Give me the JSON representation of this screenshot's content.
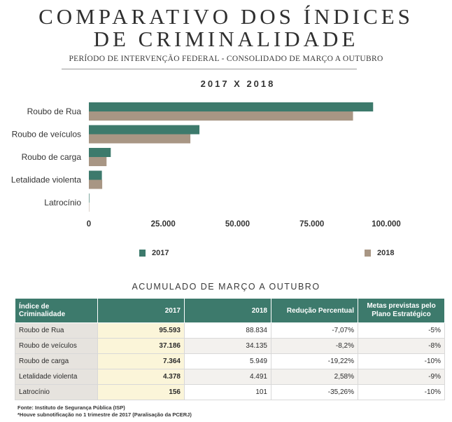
{
  "header": {
    "title_line1": "COMPARATIVO DOS ÍNDICES",
    "title_line2": "DE CRIMINALIDADE",
    "subtitle": "PERÍODO DE INTERVENÇÃO FEDERAL - CONSOLIDADO DE MARÇO A OUTUBRO"
  },
  "chart_data": {
    "type": "bar",
    "orientation": "horizontal",
    "title": "2017 X 2018",
    "categories": [
      "Roubo de Rua",
      "Roubo de veículos",
      "Roubo de carga",
      "Letalidade violenta",
      "Latrocínio"
    ],
    "series": [
      {
        "name": "2017",
        "color": "#3d7a6c",
        "values": [
          95593,
          37186,
          7364,
          4378,
          156
        ]
      },
      {
        "name": "2018",
        "color": "#a89684",
        "values": [
          88834,
          34135,
          5949,
          4491,
          101
        ]
      }
    ],
    "xlim": [
      0,
      100000
    ],
    "xticks": [
      0,
      25000,
      50000,
      75000,
      100000
    ],
    "xtick_labels": [
      "0",
      "25.000",
      "50.000",
      "75.000",
      "100.000"
    ],
    "legend_position": "bottom",
    "grid": false
  },
  "table": {
    "title": "ACUMULADO DE MARÇO A OUTUBRO",
    "headers": [
      "Índice de Criminalidade",
      "2017",
      "2018",
      "Redução Percentual",
      "Metas previstas pelo Plano Estratégico"
    ],
    "rows": [
      [
        "Roubo de Rua",
        "95.593",
        "88.834",
        "-7,07%",
        "-5%"
      ],
      [
        "Roubo de veículos",
        "37.186",
        "34.135",
        "-8,2%",
        "-8%"
      ],
      [
        "Roubo de carga",
        "7.364",
        "5.949",
        "-19,22%",
        "-10%"
      ],
      [
        "Letalidade violenta",
        "4.378",
        "4.491",
        "2,58%",
        "-9%"
      ],
      [
        "Latrocínio",
        "156",
        "101",
        "-35,26%",
        "-10%"
      ]
    ]
  },
  "footnotes": {
    "source": "Fonte: Instituto de Segurança Pública (ISP)",
    "note": "*Houve subnotificação no 1 trimestre de 2017 (Paralisação da PCERJ)"
  }
}
